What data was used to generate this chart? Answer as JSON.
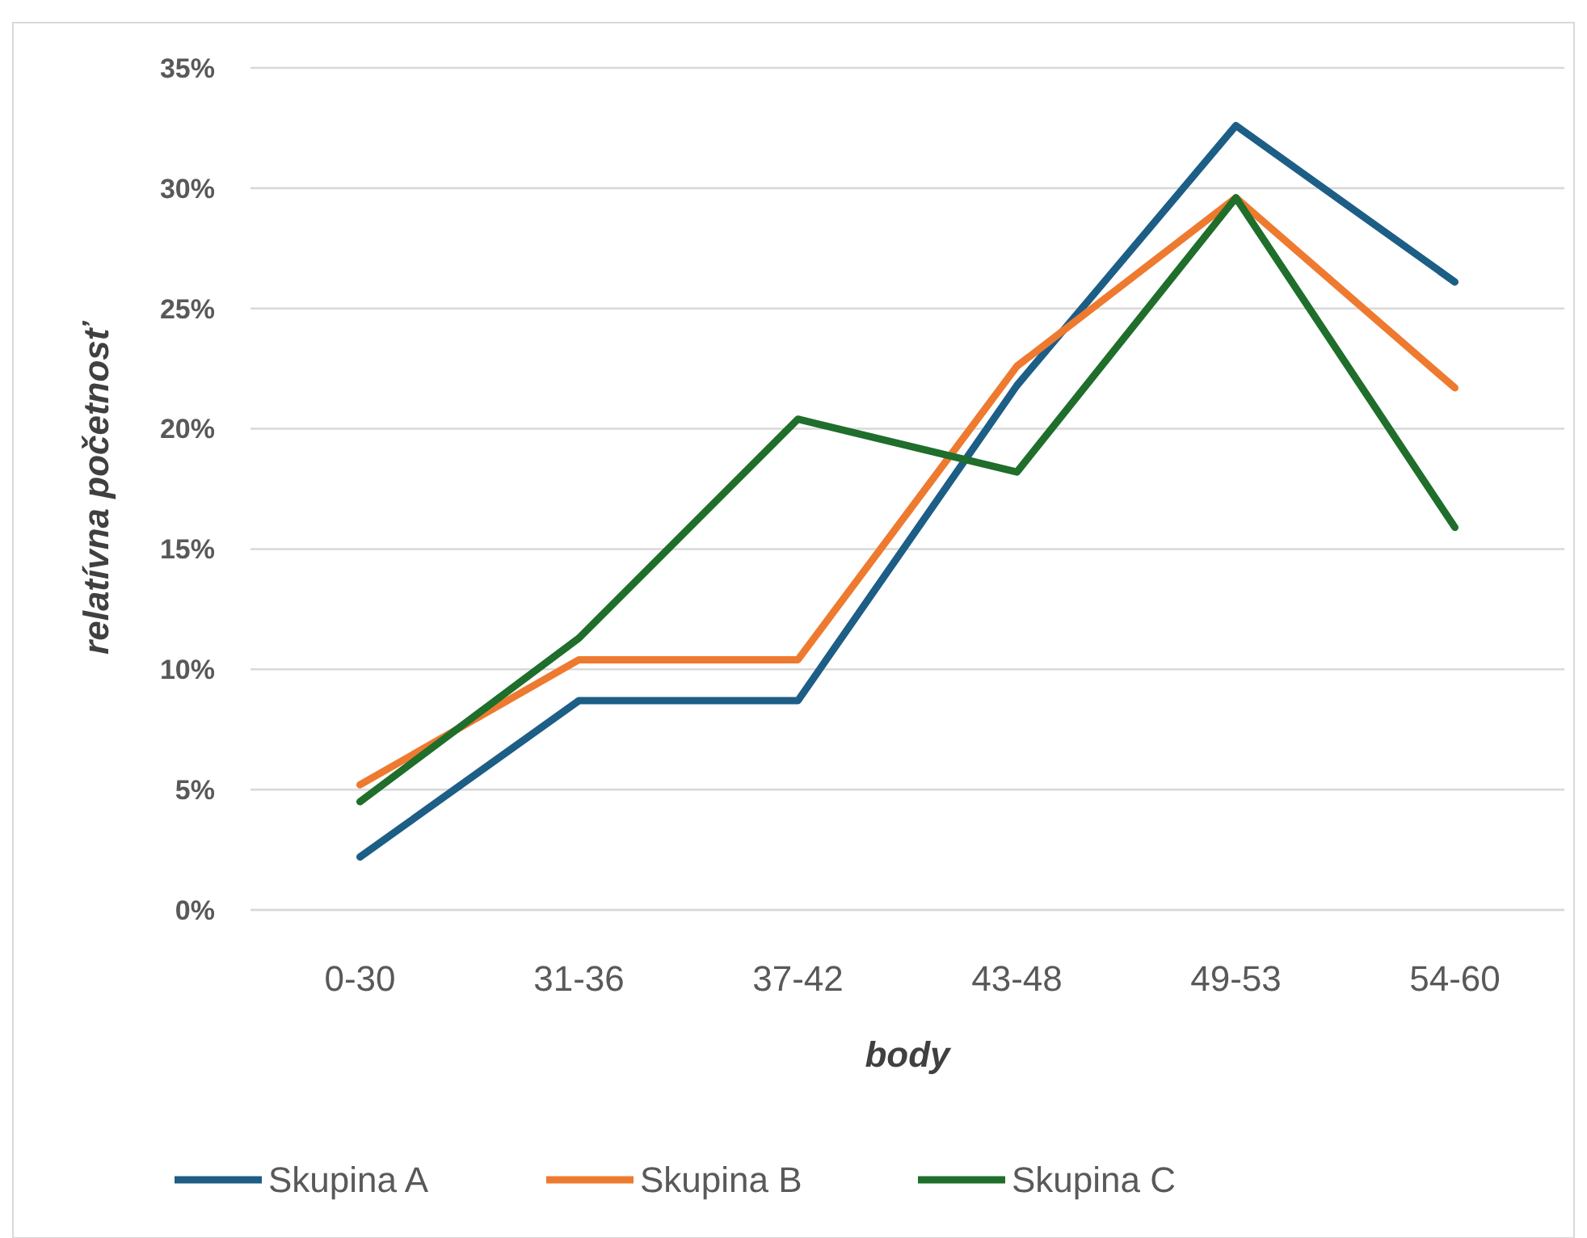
{
  "chart_data": {
    "type": "line",
    "xlabel": "body",
    "ylabel": "relatívna početnosť",
    "categories": [
      "0-30",
      "31-36",
      "37-42",
      "43-48",
      "49-53",
      "54-60"
    ],
    "series": [
      {
        "name": "Skupina A",
        "color": "#1c5e86",
        "values": [
          2.2,
          8.7,
          8.7,
          21.8,
          32.6,
          26.1
        ]
      },
      {
        "name": "Skupina B",
        "color": "#ee7a30",
        "values": [
          5.2,
          10.4,
          10.4,
          22.6,
          29.6,
          21.7
        ]
      },
      {
        "name": "Skupina C",
        "color": "#1f6e2b",
        "values": [
          4.5,
          11.3,
          20.4,
          18.2,
          29.6,
          15.9
        ]
      }
    ],
    "ylim": [
      0,
      35
    ],
    "yticks": [
      {
        "value": 0,
        "label": "0%"
      },
      {
        "value": 5,
        "label": "5%"
      },
      {
        "value": 10,
        "label": "10%"
      },
      {
        "value": 15,
        "label": "15%"
      },
      {
        "value": 20,
        "label": "20%"
      },
      {
        "value": 25,
        "label": "25%"
      },
      {
        "value": 30,
        "label": "30%"
      },
      {
        "value": 35,
        "label": "35%"
      }
    ],
    "grid": "y",
    "legend": "bottom",
    "marker": "none",
    "line_style": "solid"
  }
}
